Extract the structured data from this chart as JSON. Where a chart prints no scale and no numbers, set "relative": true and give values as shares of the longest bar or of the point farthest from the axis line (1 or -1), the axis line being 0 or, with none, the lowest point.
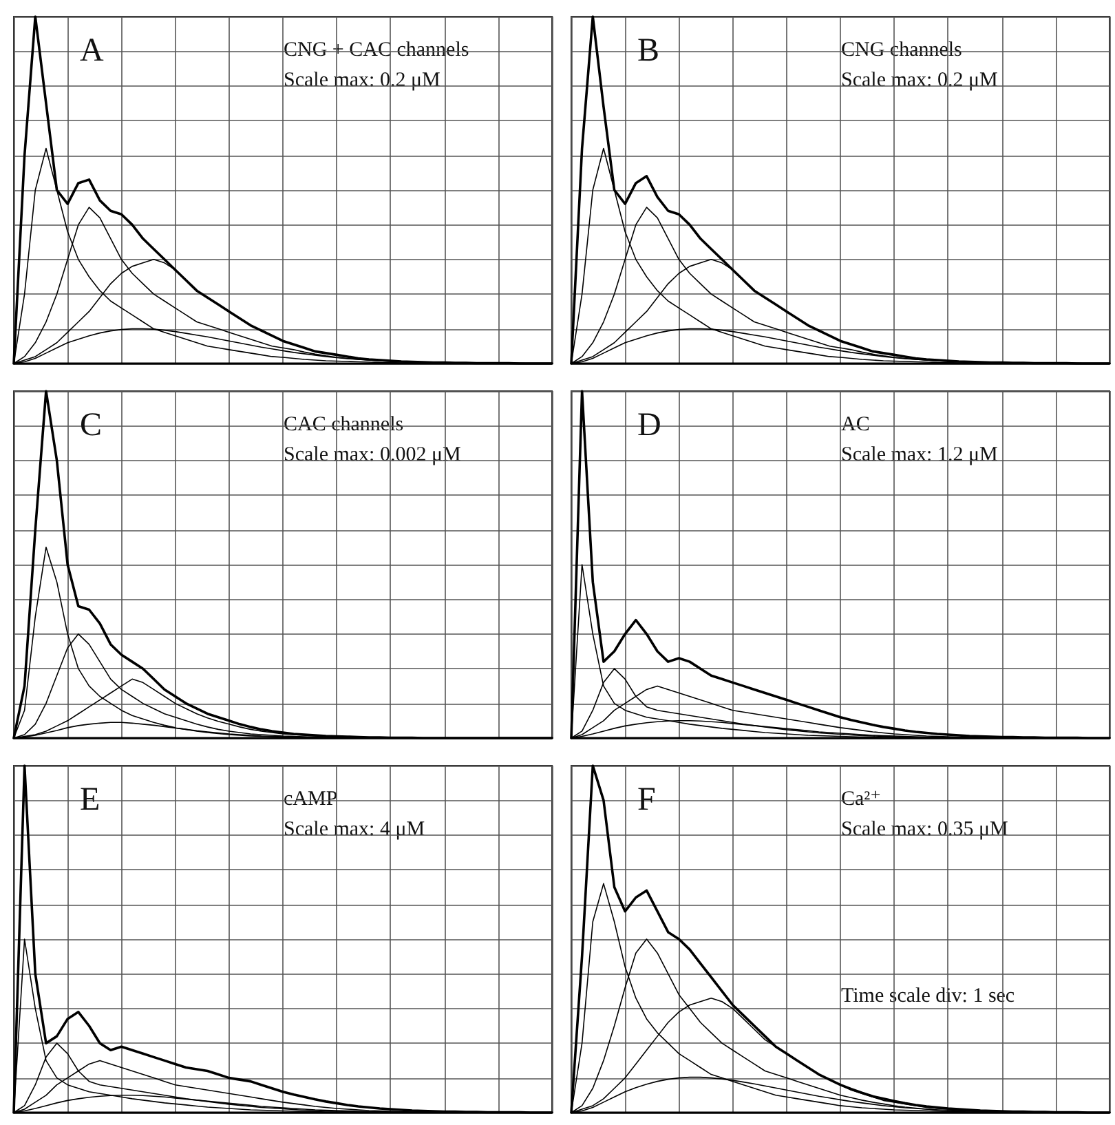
{
  "chart_data": [
    {
      "type": "line",
      "title": "A",
      "subtitle": "CNG + CAC channels",
      "annotations": [
        "Scale max: 0.2 μM"
      ],
      "relative": true,
      "grid": true,
      "categories": [
        null,
        null,
        null,
        null,
        null,
        null,
        null,
        null,
        null,
        null,
        null,
        null,
        null,
        null,
        null,
        null,
        null,
        null,
        null,
        null,
        null,
        null,
        null,
        null,
        null,
        null,
        null,
        null,
        null,
        null,
        null,
        null,
        null,
        null,
        null,
        null,
        null,
        null,
        null,
        null,
        null,
        null,
        null,
        null,
        null,
        null,
        null,
        null,
        null,
        null,
        null
      ],
      "series": [
        {
          "color": "#000000",
          "values": [
            0,
            0.6,
            1,
            0.75,
            0.5,
            0.46,
            0.52,
            0.53,
            0.47,
            0.44,
            0.43,
            0.4,
            0.36,
            0.33,
            0.3,
            0.27,
            0.24,
            0.21,
            0.19,
            0.17,
            0.15,
            0.13,
            0.11,
            0.095,
            0.08,
            0.065,
            0.055,
            0.045,
            0.035,
            0.03,
            0.025,
            0.02,
            0.015,
            0.012,
            0.01,
            0.008,
            0.006,
            0.005,
            0.004,
            0.003,
            0.003,
            0.002,
            0.002,
            0.001,
            0.001,
            0.001,
            0.001,
            0,
            0,
            0,
            0
          ]
        },
        {
          "color": "#000000",
          "values": [
            0,
            0.2,
            0.5,
            0.62,
            0.5,
            0.38,
            0.3,
            0.25,
            0.21,
            0.18,
            0.16,
            0.14,
            0.12,
            0.1,
            0.09,
            0.08,
            0.07,
            0.06,
            0.05,
            0.045,
            0.04,
            0.035,
            0.03,
            0.025,
            0.02,
            0.018,
            0.015,
            0.012,
            0.01,
            0.008,
            0.007,
            0.006,
            0.005,
            0.004,
            0.003,
            0.003,
            0.002,
            0.002,
            0.001,
            0.001,
            0.001,
            0.001,
            0,
            null,
            null,
            null,
            null,
            null,
            null,
            null,
            null
          ]
        },
        {
          "color": "#000000",
          "values": [
            0,
            0.02,
            0.06,
            0.12,
            0.2,
            0.3,
            0.4,
            0.45,
            0.42,
            0.36,
            0.3,
            0.26,
            0.23,
            0.2,
            0.18,
            0.16,
            0.14,
            0.12,
            0.11,
            0.1,
            0.09,
            0.08,
            0.07,
            0.06,
            0.05,
            0.045,
            0.04,
            0.033,
            0.027,
            0.022,
            0.018,
            0.015,
            0.012,
            0.01,
            0.008,
            0.006,
            0.005,
            0.004,
            0.003,
            0.003,
            0.002,
            0.002,
            0.001,
            0.001,
            0.001,
            0,
            null,
            null,
            null,
            null,
            null
          ]
        },
        {
          "color": "#000000",
          "values": [
            0,
            0.01,
            0.02,
            0.04,
            0.06,
            0.09,
            0.12,
            0.15,
            0.19,
            0.23,
            0.26,
            0.28,
            0.29,
            0.3,
            0.29,
            0.27,
            0.24,
            0.21,
            0.19,
            0.17,
            0.15,
            0.13,
            0.11,
            0.095,
            0.08,
            0.065,
            0.055,
            0.045,
            0.035,
            0.03,
            0.025,
            0.02,
            0.015,
            0.012,
            0.01,
            0.008,
            0.006,
            0.005,
            0.004,
            0.003,
            0.003,
            0.002,
            0.002,
            0.001,
            0.001,
            0.001,
            0.001,
            0,
            null,
            null,
            null
          ]
        },
        {
          "color": "#000000",
          "values": [
            0,
            0.005,
            0.015,
            0.03,
            0.045,
            0.06,
            0.07,
            0.08,
            0.088,
            0.094,
            0.098,
            0.1,
            0.1,
            0.099,
            0.096,
            0.092,
            0.087,
            0.082,
            0.077,
            0.071,
            0.065,
            0.059,
            0.053,
            0.047,
            0.042,
            0.037,
            0.032,
            0.028,
            0.024,
            0.02,
            0.017,
            0.014,
            0.012,
            0.01,
            0.008,
            0.007,
            0.006,
            0.005,
            0.004,
            0.003,
            0.003,
            0.002,
            0.002,
            0.001,
            0.001,
            0.001,
            0.001,
            0.001,
            0,
            null,
            null
          ]
        }
      ]
    },
    {
      "type": "line",
      "title": "B",
      "subtitle": "CNG channels",
      "annotations": [
        "Scale max: 0.2 μM"
      ],
      "relative": true,
      "grid": true,
      "categories": [
        null,
        null,
        null,
        null,
        null,
        null,
        null,
        null,
        null,
        null,
        null,
        null,
        null,
        null,
        null,
        null,
        null,
        null,
        null,
        null,
        null,
        null,
        null,
        null,
        null,
        null,
        null,
        null,
        null,
        null,
        null,
        null,
        null,
        null,
        null,
        null,
        null,
        null,
        null,
        null,
        null,
        null,
        null,
        null,
        null,
        null,
        null,
        null,
        null,
        null,
        null
      ],
      "series": [
        {
          "color": "#000000",
          "values": [
            0,
            0.62,
            1,
            0.74,
            0.5,
            0.46,
            0.52,
            0.54,
            0.48,
            0.44,
            0.43,
            0.4,
            0.36,
            0.33,
            0.3,
            0.27,
            0.24,
            0.21,
            0.19,
            0.17,
            0.15,
            0.13,
            0.11,
            0.095,
            0.08,
            0.065,
            0.055,
            0.045,
            0.035,
            0.03,
            0.025,
            0.02,
            0.015,
            0.012,
            0.01,
            0.008,
            0.006,
            0.005,
            0.004,
            0.003,
            0.003,
            0.002,
            0.002,
            0.001,
            0.001,
            0.001,
            0.001,
            0,
            0,
            0,
            0
          ]
        },
        {
          "color": "#000000",
          "values": [
            0,
            0.2,
            0.5,
            0.62,
            0.5,
            0.38,
            0.3,
            0.25,
            0.21,
            0.18,
            0.16,
            0.14,
            0.12,
            0.1,
            0.09,
            0.08,
            0.07,
            0.06,
            0.05,
            0.045,
            0.04,
            0.035,
            0.03,
            0.025,
            0.02,
            0.018,
            0.015,
            0.012,
            0.01,
            0.008,
            0.007,
            0.006,
            0.005,
            0.004,
            0.003,
            0.003,
            0.002,
            0.002,
            0.001,
            0.001,
            0.001,
            0.001,
            0,
            null,
            null,
            null,
            null,
            null,
            null,
            null,
            null
          ]
        },
        {
          "color": "#000000",
          "values": [
            0,
            0.02,
            0.06,
            0.12,
            0.2,
            0.3,
            0.4,
            0.45,
            0.42,
            0.36,
            0.3,
            0.26,
            0.23,
            0.2,
            0.18,
            0.16,
            0.14,
            0.12,
            0.11,
            0.1,
            0.09,
            0.08,
            0.07,
            0.06,
            0.05,
            0.045,
            0.04,
            0.033,
            0.027,
            0.022,
            0.018,
            0.015,
            0.012,
            0.01,
            0.008,
            0.006,
            0.005,
            0.004,
            0.003,
            0.003,
            0.002,
            0.002,
            0.001,
            0.001,
            0.001,
            0,
            null,
            null,
            null,
            null,
            null
          ]
        },
        {
          "color": "#000000",
          "values": [
            0,
            0.01,
            0.02,
            0.04,
            0.06,
            0.09,
            0.12,
            0.15,
            0.19,
            0.23,
            0.26,
            0.28,
            0.29,
            0.3,
            0.29,
            0.27,
            0.24,
            0.21,
            0.19,
            0.17,
            0.15,
            0.13,
            0.11,
            0.095,
            0.08,
            0.065,
            0.055,
            0.045,
            0.035,
            0.03,
            0.025,
            0.02,
            0.015,
            0.012,
            0.01,
            0.008,
            0.006,
            0.005,
            0.004,
            0.003,
            0.003,
            0.002,
            0.002,
            0.001,
            0.001,
            0.001,
            0.001,
            0,
            null,
            null,
            null
          ]
        },
        {
          "color": "#000000",
          "values": [
            0,
            0.005,
            0.015,
            0.03,
            0.045,
            0.06,
            0.07,
            0.08,
            0.088,
            0.094,
            0.098,
            0.1,
            0.1,
            0.099,
            0.096,
            0.092,
            0.087,
            0.082,
            0.077,
            0.071,
            0.065,
            0.059,
            0.053,
            0.047,
            0.042,
            0.037,
            0.032,
            0.028,
            0.024,
            0.02,
            0.017,
            0.014,
            0.012,
            0.01,
            0.008,
            0.007,
            0.006,
            0.005,
            0.004,
            0.003,
            0.003,
            0.002,
            0.002,
            0.001,
            0.001,
            0.001,
            0.001,
            0.001,
            0,
            null,
            null
          ]
        }
      ]
    },
    {
      "type": "line",
      "title": "C",
      "subtitle": "CAC channels",
      "annotations": [
        "Scale max: 0.002 μM"
      ],
      "relative": true,
      "grid": true,
      "categories": [
        null,
        null,
        null,
        null,
        null,
        null,
        null,
        null,
        null,
        null,
        null,
        null,
        null,
        null,
        null,
        null,
        null,
        null,
        null,
        null,
        null,
        null,
        null,
        null,
        null,
        null,
        null,
        null,
        null,
        null,
        null,
        null,
        null,
        null,
        null,
        null,
        null,
        null,
        null,
        null,
        null,
        null,
        null,
        null,
        null,
        null,
        null,
        null,
        null,
        null,
        null
      ],
      "series": [
        {
          "color": "#000000",
          "values": [
            0,
            0.15,
            0.6,
            1,
            0.8,
            0.5,
            0.38,
            0.37,
            0.33,
            0.27,
            0.24,
            0.22,
            0.2,
            0.17,
            0.14,
            0.12,
            0.1,
            0.085,
            0.07,
            0.06,
            0.05,
            0.04,
            0.032,
            0.025,
            0.02,
            0.016,
            0.012,
            0.01,
            0.008,
            0.006,
            0.005,
            0.004,
            0.003,
            0.002,
            0.002,
            0.001,
            0.001,
            0.001,
            0,
            0,
            0,
            0,
            0,
            0,
            0,
            0,
            0,
            0,
            0,
            0,
            0
          ]
        },
        {
          "color": "#000000",
          "values": [
            0,
            0.08,
            0.35,
            0.55,
            0.45,
            0.3,
            0.2,
            0.15,
            0.12,
            0.1,
            0.08,
            0.065,
            0.055,
            0.045,
            0.037,
            0.03,
            0.025,
            0.02,
            0.016,
            0.013,
            0.01,
            0.008,
            0.006,
            0.005,
            0.004,
            0.003,
            0.002,
            0.002,
            0.001,
            0.001,
            0,
            null,
            null,
            null,
            null,
            null,
            null,
            null,
            null,
            null,
            null,
            null,
            null,
            null,
            null,
            null,
            null,
            null,
            null,
            null,
            null
          ]
        },
        {
          "color": "#000000",
          "values": [
            0,
            0.01,
            0.04,
            0.1,
            0.18,
            0.26,
            0.3,
            0.27,
            0.22,
            0.17,
            0.14,
            0.12,
            0.1,
            0.085,
            0.07,
            0.06,
            0.05,
            0.04,
            0.032,
            0.025,
            0.02,
            0.016,
            0.012,
            0.01,
            0.008,
            0.006,
            0.005,
            0.004,
            0.003,
            0.002,
            0.002,
            0.001,
            0.001,
            0.001,
            0,
            null,
            null,
            null,
            null,
            null,
            null,
            null,
            null,
            null,
            null,
            null,
            null,
            null,
            null,
            null,
            null
          ]
        },
        {
          "color": "#000000",
          "values": [
            0,
            0.005,
            0.01,
            0.02,
            0.035,
            0.05,
            0.07,
            0.09,
            0.11,
            0.13,
            0.15,
            0.17,
            0.16,
            0.14,
            0.12,
            0.1,
            0.085,
            0.07,
            0.058,
            0.048,
            0.04,
            0.032,
            0.025,
            0.02,
            0.016,
            0.012,
            0.01,
            0.008,
            0.006,
            0.005,
            0.004,
            0.003,
            0.002,
            0.002,
            0.001,
            0.001,
            0.001,
            0,
            null,
            null,
            null,
            null,
            null,
            null,
            null,
            null,
            null,
            null,
            null,
            null,
            null
          ]
        },
        {
          "color": "#000000",
          "values": [
            0,
            0.003,
            0.008,
            0.015,
            0.022,
            0.03,
            0.036,
            0.04,
            0.043,
            0.045,
            0.045,
            0.043,
            0.04,
            0.037,
            0.033,
            0.029,
            0.025,
            0.021,
            0.018,
            0.015,
            0.012,
            0.01,
            0.008,
            0.006,
            0.005,
            0.004,
            0.003,
            0.002,
            0.002,
            0.001,
            0.001,
            0,
            null,
            null,
            null,
            null,
            null,
            null,
            null,
            null,
            null,
            null,
            null,
            null,
            null,
            null,
            null,
            null,
            null,
            null,
            null
          ]
        }
      ]
    },
    {
      "type": "line",
      "title": "D",
      "subtitle": "AC",
      "annotations": [
        "Scale max: 1.2 μM"
      ],
      "relative": true,
      "grid": true,
      "categories": [
        null,
        null,
        null,
        null,
        null,
        null,
        null,
        null,
        null,
        null,
        null,
        null,
        null,
        null,
        null,
        null,
        null,
        null,
        null,
        null,
        null,
        null,
        null,
        null,
        null,
        null,
        null,
        null,
        null,
        null,
        null,
        null,
        null,
        null,
        null,
        null,
        null,
        null,
        null,
        null,
        null,
        null,
        null,
        null,
        null,
        null,
        null,
        null,
        null,
        null,
        null
      ],
      "series": [
        {
          "color": "#000000",
          "values": [
            0,
            1,
            0.45,
            0.22,
            0.25,
            0.3,
            0.34,
            0.3,
            0.25,
            0.22,
            0.23,
            0.22,
            0.2,
            0.18,
            0.17,
            0.16,
            0.15,
            0.14,
            0.13,
            0.12,
            0.11,
            0.1,
            0.09,
            0.08,
            0.07,
            0.06,
            0.052,
            0.045,
            0.038,
            0.032,
            0.027,
            0.022,
            0.018,
            0.015,
            0.012,
            0.01,
            0.008,
            0.006,
            0.005,
            0.004,
            0.003,
            0.003,
            0.002,
            0.002,
            0.001,
            0.001,
            0.001,
            0.001,
            0,
            0,
            0
          ]
        },
        {
          "color": "#000000",
          "values": [
            0,
            0.5,
            0.3,
            0.15,
            0.1,
            0.08,
            0.07,
            0.06,
            0.055,
            0.05,
            0.045,
            0.04,
            0.036,
            0.032,
            0.028,
            0.025,
            0.022,
            0.019,
            0.016,
            0.014,
            0.012,
            0.01,
            0.008,
            0.007,
            0.006,
            0.005,
            0.004,
            0.003,
            0.003,
            0.002,
            0.002,
            0.001,
            0.001,
            0.001,
            0,
            null,
            null,
            null,
            null,
            null,
            null,
            null,
            null,
            null,
            null,
            null,
            null,
            null,
            null,
            null,
            null
          ]
        },
        {
          "color": "#000000",
          "values": [
            0,
            0.02,
            0.08,
            0.16,
            0.2,
            0.17,
            0.12,
            0.09,
            0.08,
            0.075,
            0.07,
            0.065,
            0.06,
            0.055,
            0.05,
            0.045,
            0.04,
            0.036,
            0.032,
            0.028,
            0.024,
            0.021,
            0.018,
            0.015,
            0.013,
            0.011,
            0.009,
            0.007,
            0.006,
            0.005,
            0.004,
            0.003,
            0.002,
            0.002,
            0.001,
            0.001,
            0,
            null,
            null,
            null,
            null,
            null,
            null,
            null,
            null,
            null,
            null,
            null,
            null,
            null,
            null
          ]
        },
        {
          "color": "#000000",
          "values": [
            0,
            0.01,
            0.03,
            0.05,
            0.08,
            0.1,
            0.12,
            0.14,
            0.15,
            0.14,
            0.13,
            0.12,
            0.11,
            0.1,
            0.09,
            0.08,
            0.075,
            0.07,
            0.065,
            0.06,
            0.055,
            0.05,
            0.045,
            0.04,
            0.035,
            0.03,
            0.026,
            0.022,
            0.018,
            0.015,
            0.012,
            0.01,
            0.008,
            0.006,
            0.005,
            0.004,
            0.003,
            0.002,
            0.002,
            0.001,
            0.001,
            0,
            null,
            null,
            null,
            null,
            null,
            null,
            null,
            null,
            null
          ]
        },
        {
          "color": "#000000",
          "values": [
            0,
            0.005,
            0.012,
            0.02,
            0.028,
            0.035,
            0.04,
            0.044,
            0.047,
            0.049,
            0.05,
            0.05,
            0.049,
            0.047,
            0.045,
            0.042,
            0.039,
            0.036,
            0.033,
            0.03,
            0.027,
            0.024,
            0.021,
            0.018,
            0.016,
            0.014,
            0.012,
            0.01,
            0.008,
            0.007,
            0.006,
            0.005,
            0.004,
            0.003,
            0.003,
            0.002,
            0.002,
            0.001,
            0.001,
            0.001,
            0,
            null,
            null,
            null,
            null,
            null,
            null,
            null,
            null,
            null,
            null
          ]
        }
      ]
    },
    {
      "type": "line",
      "title": "E",
      "subtitle": "cAMP",
      "annotations": [
        "Scale max: 4 μM"
      ],
      "relative": true,
      "grid": true,
      "categories": [
        null,
        null,
        null,
        null,
        null,
        null,
        null,
        null,
        null,
        null,
        null,
        null,
        null,
        null,
        null,
        null,
        null,
        null,
        null,
        null,
        null,
        null,
        null,
        null,
        null,
        null,
        null,
        null,
        null,
        null,
        null,
        null,
        null,
        null,
        null,
        null,
        null,
        null,
        null,
        null,
        null,
        null,
        null,
        null,
        null,
        null,
        null,
        null,
        null,
        null,
        null
      ],
      "series": [
        {
          "color": "#000000",
          "values": [
            0,
            1,
            0.4,
            0.2,
            0.22,
            0.27,
            0.29,
            0.25,
            0.2,
            0.18,
            0.19,
            0.18,
            0.17,
            0.16,
            0.15,
            0.14,
            0.13,
            0.125,
            0.12,
            0.11,
            0.1,
            0.095,
            0.09,
            0.08,
            0.07,
            0.06,
            0.052,
            0.045,
            0.038,
            0.032,
            0.027,
            0.022,
            0.018,
            0.015,
            0.012,
            0.01,
            0.008,
            0.006,
            0.005,
            0.004,
            0.003,
            0.003,
            0.002,
            0.002,
            0.001,
            0.001,
            0.001,
            0.001,
            0,
            0,
            0
          ]
        },
        {
          "color": "#000000",
          "values": [
            0,
            0.5,
            0.3,
            0.15,
            0.1,
            0.08,
            0.07,
            0.06,
            0.055,
            0.05,
            0.045,
            0.04,
            0.036,
            0.032,
            0.028,
            0.025,
            0.022,
            0.019,
            0.016,
            0.014,
            0.012,
            0.01,
            0.008,
            0.007,
            0.006,
            0.005,
            0.004,
            0.003,
            0.003,
            0.002,
            0.002,
            0.001,
            0.001,
            0.001,
            0,
            null,
            null,
            null,
            null,
            null,
            null,
            null,
            null,
            null,
            null,
            null,
            null,
            null,
            null,
            null,
            null
          ]
        },
        {
          "color": "#000000",
          "values": [
            0,
            0.02,
            0.08,
            0.16,
            0.2,
            0.17,
            0.12,
            0.09,
            0.08,
            0.075,
            0.07,
            0.065,
            0.06,
            0.055,
            0.05,
            0.045,
            0.04,
            0.036,
            0.032,
            0.028,
            0.024,
            0.021,
            0.018,
            0.015,
            0.013,
            0.011,
            0.009,
            0.007,
            0.006,
            0.005,
            0.004,
            0.003,
            0.002,
            0.002,
            0.001,
            0.001,
            0,
            null,
            null,
            null,
            null,
            null,
            null,
            null,
            null,
            null,
            null,
            null,
            null,
            null,
            null
          ]
        },
        {
          "color": "#000000",
          "values": [
            0,
            0.01,
            0.03,
            0.05,
            0.08,
            0.1,
            0.12,
            0.14,
            0.15,
            0.14,
            0.13,
            0.12,
            0.11,
            0.1,
            0.09,
            0.08,
            0.075,
            0.07,
            0.065,
            0.06,
            0.055,
            0.05,
            0.045,
            0.04,
            0.035,
            0.03,
            0.026,
            0.022,
            0.018,
            0.015,
            0.012,
            0.01,
            0.008,
            0.006,
            0.005,
            0.004,
            0.003,
            0.002,
            0.002,
            0.001,
            0.001,
            0,
            null,
            null,
            null,
            null,
            null,
            null,
            null,
            null,
            null
          ]
        },
        {
          "color": "#000000",
          "values": [
            0,
            0.005,
            0.012,
            0.02,
            0.028,
            0.035,
            0.04,
            0.044,
            0.047,
            0.049,
            0.05,
            0.05,
            0.049,
            0.047,
            0.045,
            0.042,
            0.039,
            0.036,
            0.033,
            0.03,
            0.027,
            0.024,
            0.021,
            0.018,
            0.016,
            0.014,
            0.012,
            0.01,
            0.008,
            0.007,
            0.006,
            0.005,
            0.004,
            0.003,
            0.003,
            0.002,
            0.002,
            0.001,
            0.001,
            0.001,
            0,
            null,
            null,
            null,
            null,
            null,
            null,
            null,
            null,
            null,
            null
          ]
        }
      ]
    },
    {
      "type": "line",
      "title": "F",
      "subtitle": "Ca²⁺",
      "annotations": [
        "Scale max: 0.35 μM",
        "Time scale div: 1 sec"
      ],
      "relative": true,
      "grid": true,
      "categories": [
        null,
        null,
        null,
        null,
        null,
        null,
        null,
        null,
        null,
        null,
        null,
        null,
        null,
        null,
        null,
        null,
        null,
        null,
        null,
        null,
        null,
        null,
        null,
        null,
        null,
        null,
        null,
        null,
        null,
        null,
        null,
        null,
        null,
        null,
        null,
        null,
        null,
        null,
        null,
        null,
        null,
        null,
        null,
        null,
        null,
        null,
        null,
        null,
        null,
        null,
        null
      ],
      "series": [
        {
          "color": "#000000",
          "values": [
            0,
            0.45,
            1,
            0.9,
            0.65,
            0.58,
            0.62,
            0.64,
            0.58,
            0.52,
            0.5,
            0.47,
            0.43,
            0.39,
            0.35,
            0.31,
            0.28,
            0.25,
            0.22,
            0.19,
            0.17,
            0.15,
            0.13,
            0.11,
            0.095,
            0.08,
            0.068,
            0.057,
            0.047,
            0.04,
            0.033,
            0.027,
            0.022,
            0.018,
            0.015,
            0.012,
            0.01,
            0.008,
            0.006,
            0.005,
            0.004,
            0.003,
            0.003,
            0.002,
            0.002,
            0.001,
            0.001,
            0.001,
            0,
            0,
            0
          ]
        },
        {
          "color": "#000000",
          "values": [
            0,
            0.2,
            0.55,
            0.66,
            0.55,
            0.42,
            0.33,
            0.27,
            0.23,
            0.2,
            0.17,
            0.15,
            0.13,
            0.11,
            0.1,
            0.09,
            0.08,
            0.07,
            0.06,
            0.05,
            0.045,
            0.04,
            0.035,
            0.03,
            0.025,
            0.02,
            0.017,
            0.014,
            0.012,
            0.01,
            0.008,
            0.007,
            0.006,
            0.005,
            0.004,
            0.003,
            0.003,
            0.002,
            0.002,
            0.001,
            0.001,
            0.001,
            0,
            null,
            null,
            null,
            null,
            null,
            null,
            null,
            null
          ]
        },
        {
          "color": "#000000",
          "values": [
            0,
            0.02,
            0.07,
            0.15,
            0.25,
            0.36,
            0.46,
            0.5,
            0.46,
            0.4,
            0.34,
            0.3,
            0.26,
            0.23,
            0.2,
            0.18,
            0.16,
            0.14,
            0.12,
            0.11,
            0.1,
            0.09,
            0.08,
            0.07,
            0.06,
            0.05,
            0.043,
            0.036,
            0.03,
            0.025,
            0.02,
            0.016,
            0.013,
            0.01,
            0.008,
            0.006,
            0.005,
            0.004,
            0.003,
            0.003,
            0.002,
            0.002,
            0.001,
            0.001,
            0.001,
            0,
            null,
            null,
            null,
            null,
            null
          ]
        },
        {
          "color": "#000000",
          "values": [
            0,
            0.01,
            0.02,
            0.04,
            0.07,
            0.1,
            0.14,
            0.18,
            0.22,
            0.26,
            0.29,
            0.31,
            0.32,
            0.33,
            0.32,
            0.3,
            0.27,
            0.24,
            0.21,
            0.19,
            0.17,
            0.15,
            0.13,
            0.11,
            0.095,
            0.08,
            0.065,
            0.055,
            0.045,
            0.035,
            0.03,
            0.025,
            0.02,
            0.015,
            0.012,
            0.01,
            0.008,
            0.006,
            0.005,
            0.004,
            0.003,
            0.003,
            0.002,
            0.002,
            0.001,
            0.001,
            0.001,
            0,
            null,
            null,
            null
          ]
        },
        {
          "color": "#000000",
          "values": [
            0,
            0.005,
            0.015,
            0.03,
            0.045,
            0.06,
            0.072,
            0.082,
            0.09,
            0.096,
            0.1,
            0.102,
            0.102,
            0.1,
            0.097,
            0.093,
            0.088,
            0.083,
            0.077,
            0.071,
            0.065,
            0.059,
            0.053,
            0.047,
            0.042,
            0.037,
            0.032,
            0.028,
            0.024,
            0.02,
            0.017,
            0.014,
            0.012,
            0.01,
            0.008,
            0.007,
            0.006,
            0.005,
            0.004,
            0.003,
            0.003,
            0.002,
            0.002,
            0.001,
            0.001,
            0.001,
            0.001,
            0.001,
            0,
            null,
            null
          ]
        }
      ]
    }
  ]
}
